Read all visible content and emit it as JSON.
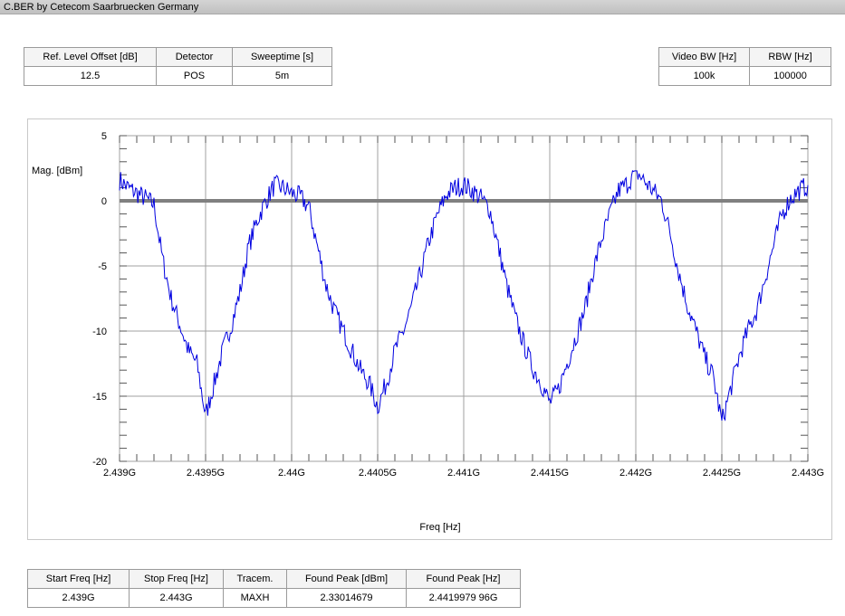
{
  "window": {
    "title": "C.BER by Cetecom Saarbruecken Germany"
  },
  "top_left_table": {
    "headers": [
      "Ref. Level Offset [dB]",
      "Detector",
      "Sweeptime [s]"
    ],
    "values": [
      "12.5",
      "POS",
      "5m"
    ]
  },
  "top_right_table": {
    "headers": [
      "Video BW [Hz]",
      "RBW [Hz]"
    ],
    "values": [
      "100k",
      "100000"
    ]
  },
  "bottom_table": {
    "headers": [
      "Start Freq [Hz]",
      "Stop Freq [Hz]",
      "Tracem.",
      "Found Peak [dBm]",
      "Found Peak [Hz]"
    ],
    "values": [
      "2.439G",
      "2.443G",
      "MAXH",
      "2.33014679",
      "2.4419979 96G"
    ]
  },
  "colors": {
    "trace": "#0000e0",
    "reference_line": "#808080",
    "grid": "#a0a0a0"
  },
  "chart_data": {
    "type": "line",
    "ylabel": "Mag. [dBm]",
    "xlabel": "Freq [Hz]",
    "xlim": [
      2.439,
      2.443
    ],
    "ylim": [
      -20,
      5
    ],
    "x_unit": "GHz",
    "x_tick_labels": [
      "2.439G",
      "2.4395G",
      "2.44G",
      "2.4405G",
      "2.441G",
      "2.4415G",
      "2.442G",
      "2.4425G",
      "2.443G"
    ],
    "y_tick_labels": [
      "5",
      "0",
      "-5",
      "-10",
      "-15",
      "-20"
    ],
    "y_ticks": [
      5,
      0,
      -5,
      -10,
      -15,
      -20
    ],
    "grid": true,
    "reference_line": 0,
    "series": [
      {
        "x": [
          2.439,
          2.43905,
          2.4391,
          2.43915,
          2.4392,
          2.43925,
          2.4393,
          2.43935,
          2.4394,
          2.43945,
          2.4395,
          2.43955,
          2.4396,
          2.43965,
          2.4397,
          2.43975,
          2.4398,
          2.43985,
          2.4399,
          2.43995,
          2.44,
          2.44005,
          2.4401,
          2.44015,
          2.4402,
          2.44025,
          2.4403,
          2.44035,
          2.4404,
          2.44045,
          2.4405,
          2.44055,
          2.4406,
          2.44065,
          2.4407,
          2.44075,
          2.4408,
          2.44085,
          2.4409,
          2.44095,
          2.441,
          2.44105,
          2.4411,
          2.44115,
          2.4412,
          2.44125,
          2.4413,
          2.44135,
          2.4414,
          2.44145,
          2.4415,
          2.44155,
          2.4416,
          2.44165,
          2.4417,
          2.44175,
          2.4418,
          2.44185,
          2.4419,
          2.44195,
          2.442,
          2.44205,
          2.4421,
          2.44215,
          2.4422,
          2.44225,
          2.4423,
          2.44235,
          2.4424,
          2.44245,
          2.4425,
          2.44255,
          2.4426,
          2.44265,
          2.4427,
          2.44275,
          2.4428,
          2.44285,
          2.4429,
          2.44295,
          2.443
        ],
        "values": [
          1.6,
          1.0,
          0.6,
          0.2,
          -0.3,
          -4.5,
          -7.5,
          -9.5,
          -11.5,
          -12.5,
          -16.5,
          -14.0,
          -11.5,
          -9.5,
          -7.0,
          -3.5,
          -1.5,
          0.0,
          1.2,
          1.0,
          0.6,
          0.3,
          -0.5,
          -3.5,
          -6.5,
          -8.5,
          -10.0,
          -11.5,
          -13.0,
          -14.0,
          -15.8,
          -14.0,
          -11.5,
          -10.0,
          -8.0,
          -5.5,
          -3.0,
          -1.0,
          0.5,
          1.0,
          1.2,
          0.8,
          0.2,
          -0.6,
          -3.5,
          -6.5,
          -9.0,
          -11.0,
          -12.8,
          -14.0,
          -15.5,
          -14.5,
          -12.5,
          -10.5,
          -8.5,
          -5.5,
          -3.0,
          -1.0,
          0.8,
          1.3,
          2.3,
          1.5,
          0.8,
          0.0,
          -2.5,
          -5.5,
          -8.0,
          -10.0,
          -12.0,
          -13.5,
          -17.0,
          -14.5,
          -12.0,
          -10.0,
          -8.5,
          -6.0,
          -3.5,
          -1.0,
          0.2,
          0.8,
          1.2
        ]
      }
    ]
  }
}
